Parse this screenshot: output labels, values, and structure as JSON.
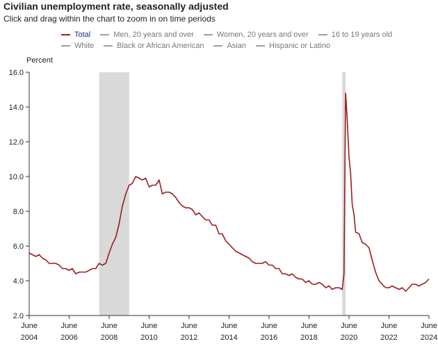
{
  "chart_data": {
    "type": "line",
    "title": "Civilian unemployment rate, seasonally adjusted",
    "subtitle": "Click and drag within the chart to zoom in on time periods",
    "ylabel": "Percent",
    "xlabel": "",
    "ylim": [
      2.0,
      16.0
    ],
    "yticks": [
      "2.0",
      "4.0",
      "6.0",
      "8.0",
      "10.0",
      "12.0",
      "14.0",
      "16.0"
    ],
    "xlim": [
      2004.42,
      2024.42
    ],
    "xticks": [
      {
        "month": "June",
        "year": "2004",
        "x": 2004.42
      },
      {
        "month": "June",
        "year": "2006",
        "x": 2006.42
      },
      {
        "month": "June",
        "year": "2008",
        "x": 2008.42
      },
      {
        "month": "June",
        "year": "2010",
        "x": 2010.42
      },
      {
        "month": "June",
        "year": "2012",
        "x": 2012.42
      },
      {
        "month": "June",
        "year": "2014",
        "x": 2014.42
      },
      {
        "month": "June",
        "year": "2016",
        "x": 2016.42
      },
      {
        "month": "June",
        "year": "2018",
        "x": 2018.42
      },
      {
        "month": "June",
        "year": "2020",
        "x": 2020.42
      },
      {
        "month": "June",
        "year": "2022",
        "x": 2022.42
      },
      {
        "month": "June",
        "year": "2024",
        "x": 2024.42
      }
    ],
    "recessions": [
      {
        "start": 2007.92,
        "end": 2009.42
      },
      {
        "start": 2020.08,
        "end": 2020.25
      }
    ],
    "legend": [
      [
        "Total",
        "Men, 20 years and over",
        "Women, 20 years and over",
        "16 to 19 years old"
      ],
      [
        "White",
        "Black or African American",
        "Asian",
        "Hispanic or Latino"
      ]
    ],
    "active_series": "Total",
    "series": [
      {
        "name": "Total",
        "color": "#9b1c1c",
        "points": [
          [
            2004.42,
            5.6
          ],
          [
            2004.58,
            5.5
          ],
          [
            2004.75,
            5.4
          ],
          [
            2004.92,
            5.5
          ],
          [
            2005.08,
            5.3
          ],
          [
            2005.25,
            5.2
          ],
          [
            2005.42,
            5.0
          ],
          [
            2005.58,
            5.0
          ],
          [
            2005.75,
            5.0
          ],
          [
            2005.92,
            4.9
          ],
          [
            2006.08,
            4.7
          ],
          [
            2006.25,
            4.7
          ],
          [
            2006.42,
            4.6
          ],
          [
            2006.58,
            4.7
          ],
          [
            2006.75,
            4.4
          ],
          [
            2006.92,
            4.5
          ],
          [
            2007.08,
            4.5
          ],
          [
            2007.25,
            4.5
          ],
          [
            2007.42,
            4.6
          ],
          [
            2007.58,
            4.7
          ],
          [
            2007.75,
            4.7
          ],
          [
            2007.92,
            5.0
          ],
          [
            2008.08,
            4.9
          ],
          [
            2008.25,
            5.0
          ],
          [
            2008.42,
            5.6
          ],
          [
            2008.58,
            6.1
          ],
          [
            2008.75,
            6.5
          ],
          [
            2008.92,
            7.3
          ],
          [
            2009.08,
            8.3
          ],
          [
            2009.25,
            9.0
          ],
          [
            2009.42,
            9.5
          ],
          [
            2009.58,
            9.6
          ],
          [
            2009.75,
            10.0
          ],
          [
            2009.92,
            9.9
          ],
          [
            2010.08,
            9.8
          ],
          [
            2010.25,
            9.9
          ],
          [
            2010.42,
            9.4
          ],
          [
            2010.58,
            9.5
          ],
          [
            2010.75,
            9.5
          ],
          [
            2010.92,
            9.8
          ],
          [
            2011.08,
            9.0
          ],
          [
            2011.25,
            9.1
          ],
          [
            2011.42,
            9.1
          ],
          [
            2011.58,
            9.0
          ],
          [
            2011.75,
            8.8
          ],
          [
            2011.92,
            8.5
          ],
          [
            2012.08,
            8.3
          ],
          [
            2012.25,
            8.2
          ],
          [
            2012.42,
            8.2
          ],
          [
            2012.58,
            8.1
          ],
          [
            2012.75,
            7.8
          ],
          [
            2012.92,
            7.9
          ],
          [
            2013.08,
            7.7
          ],
          [
            2013.25,
            7.5
          ],
          [
            2013.42,
            7.5
          ],
          [
            2013.58,
            7.2
          ],
          [
            2013.75,
            7.2
          ],
          [
            2013.92,
            6.7
          ],
          [
            2014.08,
            6.7
          ],
          [
            2014.25,
            6.3
          ],
          [
            2014.42,
            6.1
          ],
          [
            2014.58,
            5.9
          ],
          [
            2014.75,
            5.7
          ],
          [
            2014.92,
            5.6
          ],
          [
            2015.08,
            5.5
          ],
          [
            2015.25,
            5.4
          ],
          [
            2015.42,
            5.3
          ],
          [
            2015.58,
            5.1
          ],
          [
            2015.75,
            5.0
          ],
          [
            2015.92,
            5.0
          ],
          [
            2016.08,
            5.0
          ],
          [
            2016.25,
            5.1
          ],
          [
            2016.42,
            4.9
          ],
          [
            2016.58,
            4.9
          ],
          [
            2016.75,
            4.7
          ],
          [
            2016.92,
            4.7
          ],
          [
            2017.08,
            4.4
          ],
          [
            2017.25,
            4.4
          ],
          [
            2017.42,
            4.3
          ],
          [
            2017.58,
            4.4
          ],
          [
            2017.75,
            4.2
          ],
          [
            2017.92,
            4.1
          ],
          [
            2018.08,
            4.1
          ],
          [
            2018.25,
            3.9
          ],
          [
            2018.42,
            4.0
          ],
          [
            2018.58,
            3.8
          ],
          [
            2018.75,
            3.8
          ],
          [
            2018.92,
            3.9
          ],
          [
            2019.08,
            3.8
          ],
          [
            2019.25,
            3.6
          ],
          [
            2019.42,
            3.7
          ],
          [
            2019.58,
            3.5
          ],
          [
            2019.75,
            3.6
          ],
          [
            2019.92,
            3.6
          ],
          [
            2020.08,
            3.5
          ],
          [
            2020.17,
            4.4
          ],
          [
            2020.25,
            14.8
          ],
          [
            2020.33,
            13.3
          ],
          [
            2020.42,
            11.1
          ],
          [
            2020.5,
            10.2
          ],
          [
            2020.58,
            8.4
          ],
          [
            2020.67,
            7.8
          ],
          [
            2020.75,
            6.8
          ],
          [
            2020.92,
            6.7
          ],
          [
            2021.08,
            6.2
          ],
          [
            2021.25,
            6.1
          ],
          [
            2021.42,
            5.9
          ],
          [
            2021.58,
            5.2
          ],
          [
            2021.75,
            4.5
          ],
          [
            2021.92,
            4.0
          ],
          [
            2022.08,
            3.8
          ],
          [
            2022.25,
            3.6
          ],
          [
            2022.42,
            3.6
          ],
          [
            2022.58,
            3.7
          ],
          [
            2022.75,
            3.6
          ],
          [
            2022.92,
            3.5
          ],
          [
            2023.08,
            3.6
          ],
          [
            2023.25,
            3.4
          ],
          [
            2023.42,
            3.6
          ],
          [
            2023.58,
            3.8
          ],
          [
            2023.75,
            3.8
          ],
          [
            2023.92,
            3.7
          ],
          [
            2024.08,
            3.8
          ],
          [
            2024.25,
            3.9
          ],
          [
            2024.42,
            4.1
          ]
        ]
      }
    ]
  }
}
